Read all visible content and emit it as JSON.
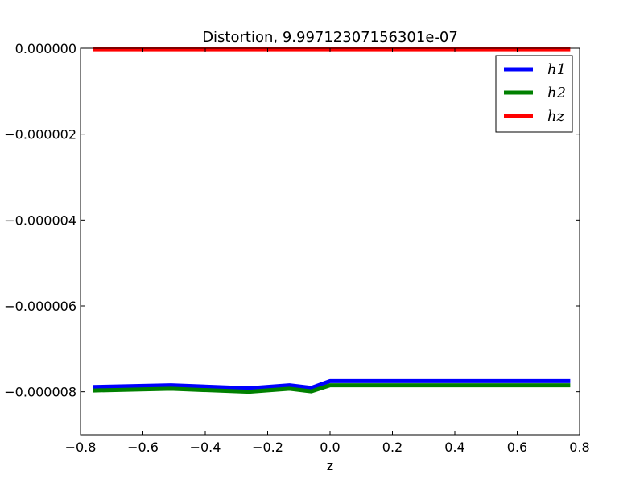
{
  "chart_data": {
    "type": "line",
    "title": "Distortion, 9.99712307156301e-07",
    "xlabel": "z",
    "ylabel": "",
    "xlim": [
      -0.8,
      0.8
    ],
    "ylim": [
      -9e-06,
      0.0
    ],
    "x_ticks": [
      -0.8,
      -0.6,
      -0.4,
      -0.2,
      0.0,
      0.2,
      0.4,
      0.6,
      0.8
    ],
    "x_tick_labels": [
      "−0.8",
      "−0.6",
      "−0.4",
      "−0.2",
      "0.0",
      "0.2",
      "0.4",
      "0.6",
      "0.8"
    ],
    "y_ticks": [
      0.0,
      -2e-06,
      -4e-06,
      -6e-06,
      -8e-06
    ],
    "y_tick_labels": [
      "0.000000",
      "−0.000002",
      "−0.000004",
      "−0.000006",
      "−0.000008"
    ],
    "grid": false,
    "legend_position": "top-right",
    "series": [
      {
        "name": "h1",
        "color": "#0000ff",
        "x": [
          -0.76,
          -0.51,
          -0.26,
          -0.13,
          -0.06,
          0.0,
          0.77
        ],
        "y": [
          -7.89e-06,
          -7.85e-06,
          -7.92e-06,
          -7.85e-06,
          -7.91e-06,
          -7.75e-06,
          -7.75e-06
        ]
      },
      {
        "name": "h2",
        "color": "#008000",
        "x": [
          -0.76,
          -0.51,
          -0.26,
          -0.13,
          -0.06,
          0.0,
          0.77
        ],
        "y": [
          -7.97e-06,
          -7.93e-06,
          -8e-06,
          -7.93e-06,
          -7.99e-06,
          -7.85e-06,
          -7.85e-06
        ]
      },
      {
        "name": "hz",
        "color": "#ff0000",
        "x": [
          -0.76,
          0.77
        ],
        "y": [
          -2e-08,
          -2e-08
        ]
      }
    ]
  }
}
